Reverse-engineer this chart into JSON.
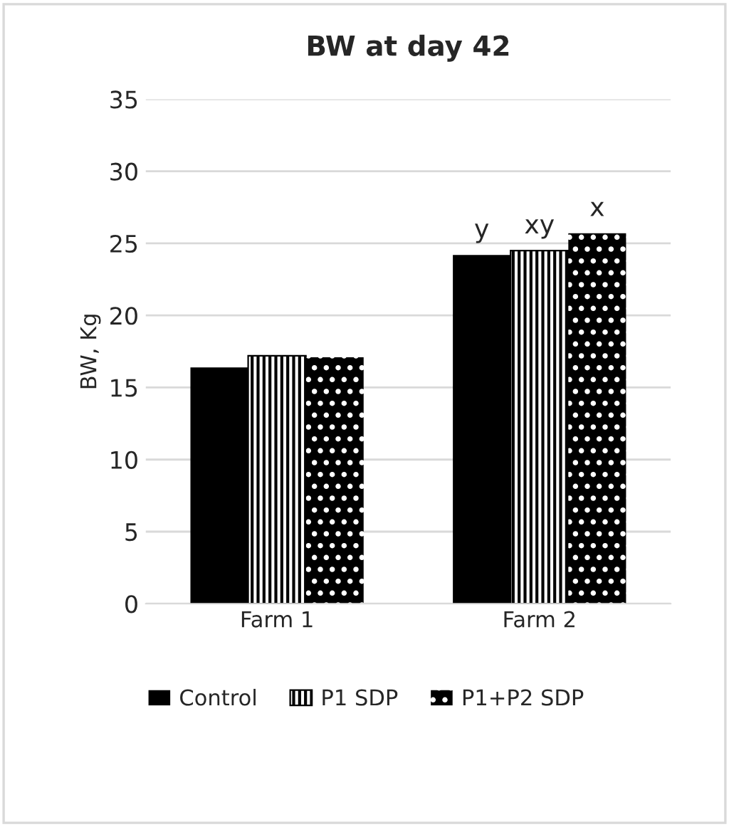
{
  "chart_data": {
    "type": "bar",
    "title": "BW at day 42",
    "ylabel": "BW, Kg",
    "categories": [
      "Farm 1",
      "Farm 2"
    ],
    "series": [
      {
        "name": "Control",
        "color": "#000000",
        "values": [
          16.4,
          24.2
        ]
      },
      {
        "name": "P1 SDP",
        "color": "#000000",
        "values": [
          17.2,
          24.5
        ]
      },
      {
        "name": "P1+P2 SDP",
        "color": "#000000",
        "values": [
          17.1,
          25.7
        ]
      }
    ],
    "annotations": [
      "y",
      "xy",
      "x"
    ],
    "ylim": [
      0,
      35
    ],
    "yticks": [
      0,
      5,
      10,
      15,
      20,
      25,
      30,
      35
    ],
    "grid": "y",
    "legend": "bottom"
  }
}
